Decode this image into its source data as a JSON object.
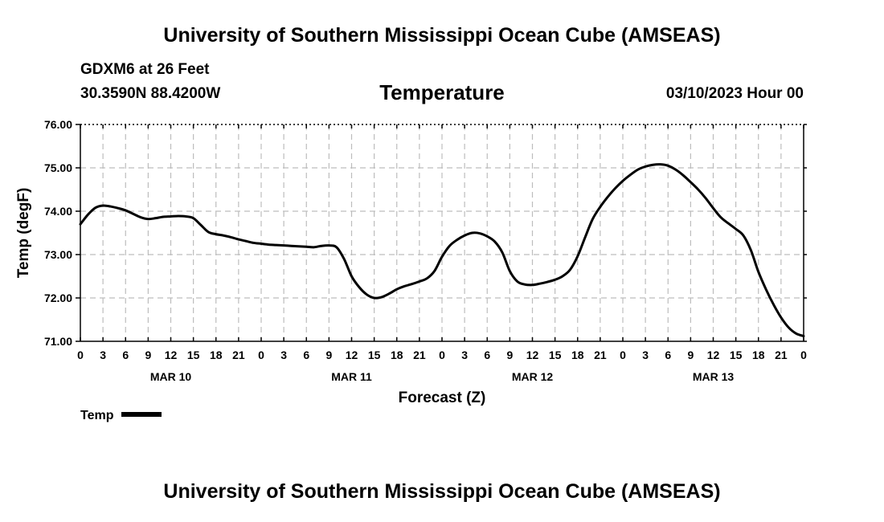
{
  "header": {
    "main_title": "University of Southern Mississippi Ocean Cube (AMSEAS)",
    "station": "GDXM6 at 26 Feet",
    "coords": "30.3590N  88.4200W",
    "datetime": "03/10/2023 Hour 00"
  },
  "footer": {
    "title": "University of Southern Mississippi Ocean Cube (AMSEAS)"
  },
  "legend": {
    "label": "Temp",
    "color": "#000000"
  },
  "chart_data": {
    "type": "line",
    "title": "Temperature",
    "xlabel": "Forecast (Z)",
    "ylabel": "Temp (degF)",
    "xlim": [
      0,
      96
    ],
    "ylim": [
      71.0,
      76.0
    ],
    "grid": true,
    "x_ticks": [
      0,
      3,
      6,
      9,
      12,
      15,
      18,
      21,
      24,
      27,
      30,
      33,
      36,
      39,
      42,
      45,
      48,
      51,
      54,
      57,
      60,
      63,
      66,
      69,
      72,
      75,
      78,
      81,
      84,
      87,
      90,
      93,
      96
    ],
    "x_tick_labels": [
      "0",
      "3",
      "6",
      "9",
      "12",
      "15",
      "18",
      "21",
      "0",
      "3",
      "6",
      "9",
      "12",
      "15",
      "18",
      "21",
      "0",
      "3",
      "6",
      "9",
      "12",
      "15",
      "18",
      "21",
      "0",
      "3",
      "6",
      "9",
      "12",
      "15",
      "18",
      "21",
      "0"
    ],
    "day_labels": [
      {
        "x": 12,
        "label": "MAR 10"
      },
      {
        "x": 36,
        "label": "MAR 11"
      },
      {
        "x": 60,
        "label": "MAR 12"
      },
      {
        "x": 84,
        "label": "MAR 13"
      }
    ],
    "y_ticks": [
      71.0,
      72.0,
      73.0,
      74.0,
      75.0,
      76.0
    ],
    "y_tick_labels": [
      "71.00",
      "72.00",
      "73.00",
      "74.00",
      "75.00",
      "76.00"
    ],
    "series": [
      {
        "name": "Temp",
        "x": [
          0,
          1,
          2,
          3,
          4,
          5,
          6,
          7,
          8,
          9,
          10,
          11,
          12,
          13,
          14,
          15,
          16,
          17,
          18,
          19,
          20,
          21,
          22,
          23,
          24,
          25,
          26,
          27,
          28,
          29,
          30,
          31,
          32,
          33,
          34,
          35,
          36,
          37,
          38,
          39,
          40,
          41,
          42,
          43,
          44,
          45,
          46,
          47,
          48,
          49,
          50,
          51,
          52,
          53,
          54,
          55,
          56,
          57,
          58,
          59,
          60,
          61,
          62,
          63,
          64,
          65,
          66,
          67,
          68,
          69,
          70,
          71,
          72,
          73,
          74,
          75,
          76,
          77,
          78,
          79,
          80,
          81,
          82,
          83,
          84,
          85,
          86,
          87,
          88,
          89,
          90,
          91,
          92,
          93,
          94,
          95,
          96
        ],
        "values": [
          73.7,
          73.92,
          74.08,
          74.13,
          74.11,
          74.07,
          74.02,
          73.94,
          73.86,
          73.82,
          73.84,
          73.87,
          73.88,
          73.89,
          73.88,
          73.84,
          73.68,
          73.52,
          73.47,
          73.44,
          73.4,
          73.35,
          73.31,
          73.27,
          73.25,
          73.23,
          73.22,
          73.21,
          73.2,
          73.19,
          73.18,
          73.17,
          73.2,
          73.21,
          73.17,
          72.9,
          72.5,
          72.25,
          72.08,
          72.0,
          72.02,
          72.1,
          72.2,
          72.27,
          72.32,
          72.38,
          72.45,
          72.62,
          72.95,
          73.2,
          73.34,
          73.44,
          73.5,
          73.49,
          73.42,
          73.3,
          73.05,
          72.62,
          72.38,
          72.31,
          72.3,
          72.33,
          72.37,
          72.42,
          72.5,
          72.65,
          72.96,
          73.4,
          73.82,
          74.1,
          74.33,
          74.53,
          74.7,
          74.84,
          74.96,
          75.03,
          75.07,
          75.08,
          75.05,
          74.96,
          74.83,
          74.67,
          74.5,
          74.3,
          74.07,
          73.86,
          73.72,
          73.59,
          73.44,
          73.1,
          72.6,
          72.2,
          71.85,
          71.55,
          71.32,
          71.18,
          71.12
        ]
      }
    ]
  }
}
